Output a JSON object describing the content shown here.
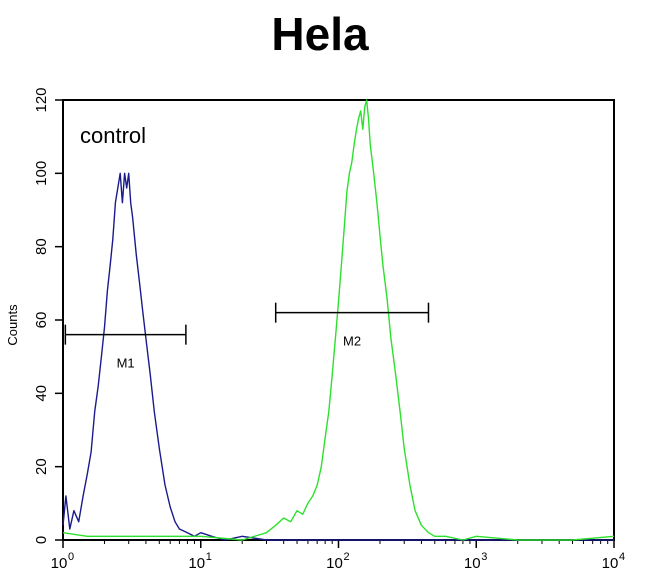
{
  "chart_data": {
    "type": "line",
    "title": "Hela",
    "xlabel": "",
    "ylabel": "Counts",
    "x_scale": "log",
    "xlim": [
      1,
      10000
    ],
    "ylim": [
      0,
      120
    ],
    "x_ticks": [
      {
        "value": 1,
        "base": "10",
        "exp": "0"
      },
      {
        "value": 10,
        "base": "10",
        "exp": "1"
      },
      {
        "value": 100,
        "base": "10",
        "exp": "2"
      },
      {
        "value": 1000,
        "base": "10",
        "exp": "3"
      },
      {
        "value": 10000,
        "base": "10",
        "exp": "4"
      }
    ],
    "y_ticks": [
      "0",
      "20",
      "40",
      "60",
      "80",
      "100",
      "120"
    ],
    "annotation": "control",
    "series": [
      {
        "color": "#1a1a8c",
        "points": [
          [
            1.0,
            4
          ],
          [
            1.05,
            12
          ],
          [
            1.12,
            3
          ],
          [
            1.2,
            8
          ],
          [
            1.3,
            5
          ],
          [
            1.4,
            12
          ],
          [
            1.5,
            18
          ],
          [
            1.6,
            24
          ],
          [
            1.7,
            35
          ],
          [
            1.8,
            42
          ],
          [
            1.9,
            50
          ],
          [
            2.0,
            58
          ],
          [
            2.1,
            68
          ],
          [
            2.2,
            75
          ],
          [
            2.3,
            82
          ],
          [
            2.4,
            92
          ],
          [
            2.5,
            96
          ],
          [
            2.6,
            100
          ],
          [
            2.7,
            92
          ],
          [
            2.8,
            100
          ],
          [
            2.9,
            96
          ],
          [
            3.0,
            100
          ],
          [
            3.1,
            92
          ],
          [
            3.2,
            88
          ],
          [
            3.4,
            78
          ],
          [
            3.6,
            70
          ],
          [
            3.8,
            62
          ],
          [
            4.0,
            55
          ],
          [
            4.3,
            45
          ],
          [
            4.6,
            35
          ],
          [
            5.0,
            25
          ],
          [
            5.5,
            15
          ],
          [
            6.0,
            9
          ],
          [
            6.5,
            5
          ],
          [
            7.0,
            3
          ],
          [
            8.0,
            2
          ],
          [
            9.0,
            1
          ],
          [
            10.0,
            2
          ],
          [
            12.0,
            1
          ],
          [
            15.0,
            0
          ],
          [
            20.0,
            1
          ],
          [
            30.0,
            0
          ],
          [
            50.0,
            0
          ],
          [
            100.0,
            0
          ],
          [
            300.0,
            0
          ],
          [
            1000.0,
            0
          ],
          [
            10000.0,
            0
          ]
        ]
      },
      {
        "color": "#2ee02e",
        "points": [
          [
            1.0,
            2
          ],
          [
            1.5,
            1
          ],
          [
            3.0,
            1
          ],
          [
            10.0,
            1
          ],
          [
            20.0,
            0
          ],
          [
            30.0,
            2
          ],
          [
            35.0,
            4
          ],
          [
            40.0,
            6
          ],
          [
            45.0,
            5
          ],
          [
            50.0,
            8
          ],
          [
            55.0,
            7
          ],
          [
            60.0,
            10
          ],
          [
            65.0,
            12
          ],
          [
            70.0,
            15
          ],
          [
            75.0,
            20
          ],
          [
            80.0,
            28
          ],
          [
            85.0,
            35
          ],
          [
            90.0,
            45
          ],
          [
            95.0,
            55
          ],
          [
            100.0,
            65
          ],
          [
            105.0,
            75
          ],
          [
            110.0,
            85
          ],
          [
            115.0,
            95
          ],
          [
            120.0,
            100
          ],
          [
            125.0,
            103
          ],
          [
            130.0,
            108
          ],
          [
            135.0,
            112
          ],
          [
            140.0,
            115
          ],
          [
            145.0,
            117
          ],
          [
            150.0,
            112
          ],
          [
            155.0,
            118
          ],
          [
            160.0,
            120
          ],
          [
            165.0,
            115
          ],
          [
            170.0,
            108
          ],
          [
            180.0,
            100
          ],
          [
            190.0,
            92
          ],
          [
            200.0,
            83
          ],
          [
            210.0,
            75
          ],
          [
            225.0,
            66
          ],
          [
            240.0,
            55
          ],
          [
            260.0,
            45
          ],
          [
            280.0,
            35
          ],
          [
            300.0,
            25
          ],
          [
            330.0,
            15
          ],
          [
            360.0,
            8
          ],
          [
            400.0,
            4
          ],
          [
            450.0,
            2
          ],
          [
            500.0,
            1
          ],
          [
            600.0,
            1
          ],
          [
            800.0,
            0
          ],
          [
            1000.0,
            1
          ],
          [
            2000.0,
            0
          ],
          [
            5000.0,
            0
          ],
          [
            10000.0,
            1
          ]
        ]
      }
    ],
    "gates": [
      {
        "label": "M1",
        "x_start": 1.04,
        "x_end": 7.8,
        "y": 56
      },
      {
        "label": "M2",
        "x_start": 35,
        "x_end": 450,
        "y": 62
      }
    ]
  }
}
